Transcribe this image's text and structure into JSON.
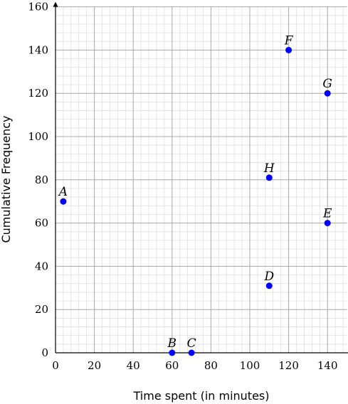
{
  "chart_data": {
    "type": "scatter",
    "title": "",
    "xlabel": "Time spent (in minutes)",
    "ylabel": "Cumulative Frequency",
    "xlim": [
      0,
      150
    ],
    "ylim": [
      0,
      160
    ],
    "x_ticks": [
      0,
      20,
      40,
      60,
      80,
      100,
      120,
      140
    ],
    "y_ticks": [
      0,
      20,
      40,
      60,
      80,
      100,
      120,
      140,
      160
    ],
    "grid": true,
    "point_color": "#0000ff",
    "points": [
      {
        "label": "A",
        "x": 4,
        "y": 70
      },
      {
        "label": "B",
        "x": 60,
        "y": 0
      },
      {
        "label": "C",
        "x": 70,
        "y": 0
      },
      {
        "label": "D",
        "x": 110,
        "y": 31
      },
      {
        "label": "E",
        "x": 140,
        "y": 60
      },
      {
        "label": "F",
        "x": 120,
        "y": 140
      },
      {
        "label": "G",
        "x": 140,
        "y": 120
      },
      {
        "label": "H",
        "x": 110,
        "y": 81
      }
    ]
  }
}
